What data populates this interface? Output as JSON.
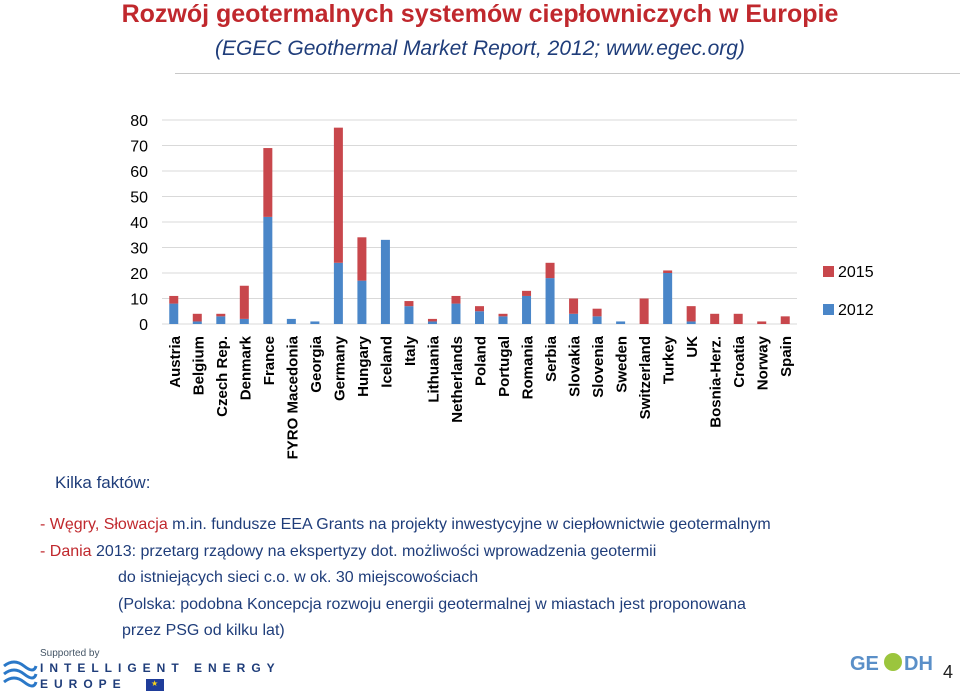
{
  "header": {
    "title": "Rozwój geotermalnych systemów ciepłowniczych w Europie",
    "subtitle": "(EGEC Geothermal Market Report, 2012; www.egec.org)"
  },
  "chart_data": {
    "type": "bar",
    "stacked": true,
    "categories": [
      "Austria",
      "Belgium",
      "Czech Rep.",
      "Denmark",
      "France",
      "FYRO Macedonia",
      "Georgia",
      "Germany",
      "Hungary",
      "Iceland",
      "Italy",
      "Lithuania",
      "Netherlands",
      "Poland",
      "Portugal",
      "Romania",
      "Serbia",
      "Slovakia",
      "Slovenia",
      "Sweden",
      "Switzerland",
      "Turkey",
      "UK",
      "Bosnia-Herz.",
      "Croatia",
      "Norway",
      "Spain"
    ],
    "series": [
      {
        "name": "2012",
        "color": "#4a86c8",
        "values": [
          8,
          1,
          3,
          2,
          42,
          2,
          1,
          24,
          17,
          33,
          7,
          1,
          8,
          5,
          3,
          11,
          18,
          4,
          3,
          1,
          0,
          20,
          1,
          0,
          0,
          0,
          0
        ]
      },
      {
        "name": "2015",
        "color": "#c8474c",
        "values": [
          3,
          3,
          1,
          13,
          27,
          0,
          0,
          53,
          17,
          0,
          2,
          1,
          3,
          2,
          1,
          2,
          6,
          6,
          3,
          0,
          10,
          1,
          6,
          4,
          4,
          1,
          3
        ]
      }
    ],
    "yticks": [
      0,
      10,
      20,
      30,
      40,
      50,
      60,
      70,
      80
    ],
    "ylim": [
      0,
      80
    ],
    "legend": "right",
    "grid": true
  },
  "facts": {
    "label": "Kilka faktów:",
    "line1_prefix": "- Węgry, Słowacja",
    "line1_rest": " m.in. fundusze EEA Grants na projekty inwestycyjne w ciepłownictwie geotermalnym",
    "line2_prefix": "- Dania",
    "line2_rest": " 2013: przetarg rządowy na ekspertyzy dot. możliwości wprowadzenia geotermii",
    "line3": "do istniejących sieci c.o. w ok. 30 miejscowościach",
    "line4": "(Polska: podobna Koncepcja rozwoju energii geotermalnej w miastach jest proponowana",
    "line5": "przez PSG od kilku lat)"
  },
  "footer": {
    "supported": "Supported by",
    "program_line1": "INTELLIGENT ENERGY",
    "program_line2": "EUROPE",
    "logo_text": "GEODH",
    "page_number": "4"
  }
}
